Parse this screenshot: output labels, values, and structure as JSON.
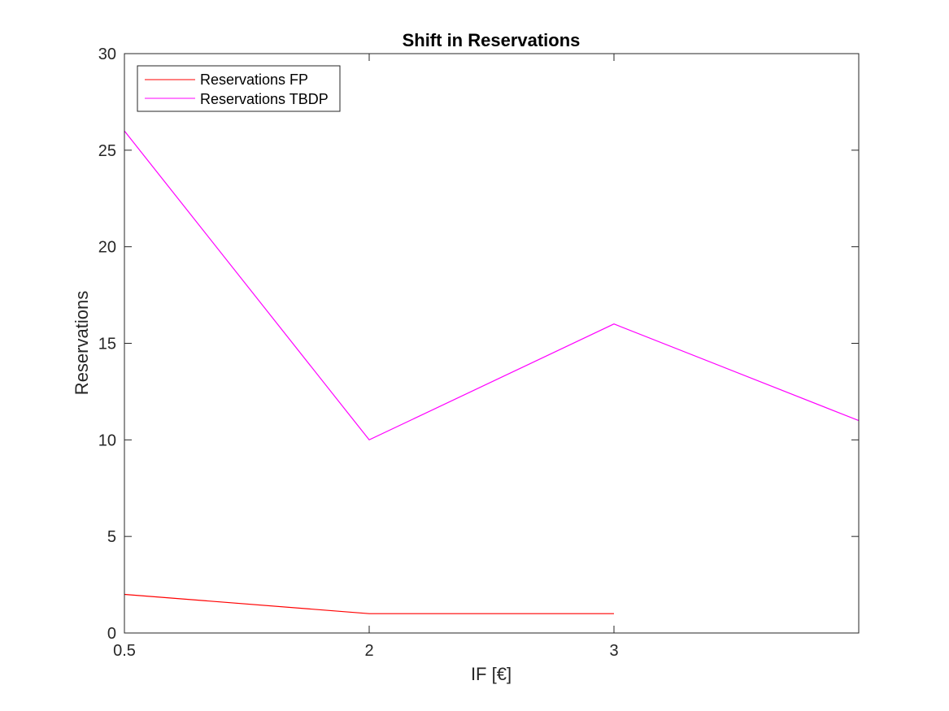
{
  "chart_data": {
    "type": "line",
    "title": "Shift in Reservations",
    "xlabel": "IF [€]",
    "ylabel": "Reservations",
    "x_tick_labels": [
      "0.5",
      "2",
      "3"
    ],
    "y_ticks": [
      0,
      5,
      10,
      15,
      20,
      25,
      30
    ],
    "ylim": [
      0,
      30
    ],
    "grid": false,
    "legend_position": "top-left",
    "categories": [
      "0.5",
      "2",
      "3",
      ""
    ],
    "series": [
      {
        "name": "Reservations FP",
        "color": "#ff0000",
        "values": [
          2,
          1,
          1,
          null
        ]
      },
      {
        "name": "Reservations TBDP",
        "color": "#ff00ff",
        "values": [
          26,
          10,
          16,
          11
        ]
      }
    ]
  }
}
